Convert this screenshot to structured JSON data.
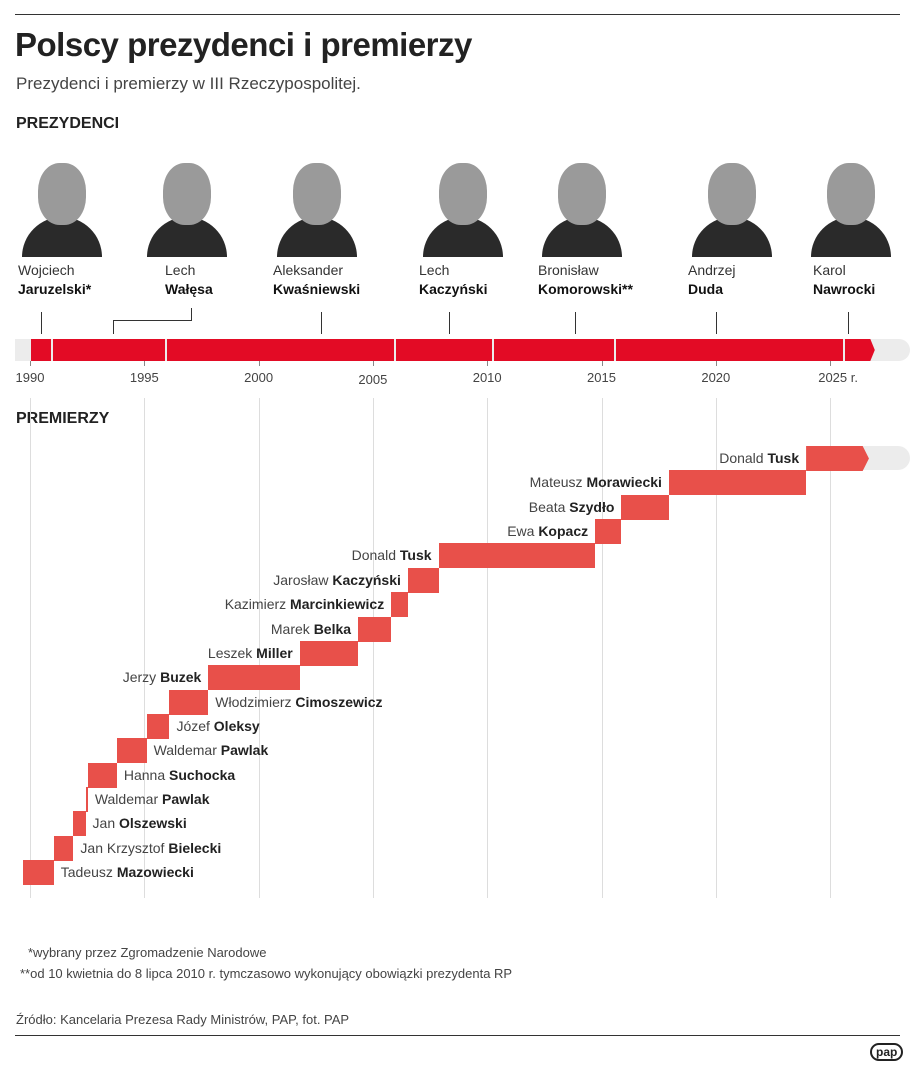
{
  "title": "Polscy prezydenci i premierzy",
  "subtitle": "Prezydenci i premierzy w III Rzeczypospolitej.",
  "sections": {
    "presidents": "PREZYDENCI",
    "pms": "PREMIERZY"
  },
  "chart_data": {
    "type": "timeline",
    "x_ticks": [
      "1990",
      "1995",
      "2000",
      "2005",
      "2010",
      "2015",
      "2020",
      "2025 r."
    ],
    "x_tick_values": [
      1990,
      1995,
      2000,
      2005,
      2010,
      2015,
      2020,
      2025
    ],
    "xlim": [
      1989.5,
      2028.5
    ],
    "bar_color": "#e30b25",
    "pm_bar_color": "#e8504a",
    "future_color": "#ececec",
    "presidents": [
      {
        "first": "Wojciech",
        "last": "Jaruzelski*",
        "start": 1989.55,
        "end": 1990.97
      },
      {
        "first": "Lech",
        "last": "Wałęsa",
        "start": 1990.97,
        "end": 1995.97
      },
      {
        "first": "Aleksander",
        "last": "Kwaśniewski",
        "start": 1995.97,
        "end": 2005.97
      },
      {
        "first": "Lech",
        "last": "Kaczyński",
        "start": 2005.97,
        "end": 2010.27
      },
      {
        "first": "Bronisław",
        "last": "Komorowski**",
        "start": 2010.27,
        "end": 2015.6
      },
      {
        "first": "Andrzej",
        "last": "Duda",
        "start": 2015.6,
        "end": 2025.6
      },
      {
        "first": "Karol",
        "last": "Nawrocki",
        "start": 2025.6,
        "end": 2027.0
      }
    ],
    "pms": [
      {
        "first": "Tadeusz",
        "last": "Mazowiecki",
        "start": 1989.7,
        "end": 1991.04,
        "side": "right"
      },
      {
        "first": "Jan Krzysztof",
        "last": "Bielecki",
        "start": 1991.04,
        "end": 1991.9,
        "side": "right"
      },
      {
        "first": "Jan",
        "last": "Olszewski",
        "start": 1991.9,
        "end": 1992.43,
        "side": "right"
      },
      {
        "first": "Waldemar",
        "last": "Pawlak",
        "start": 1992.43,
        "end": 1992.53,
        "side": "right"
      },
      {
        "first": "Hanna",
        "last": "Suchocka",
        "start": 1992.53,
        "end": 1993.8,
        "side": "right"
      },
      {
        "first": "Waldemar",
        "last": "Pawlak",
        "start": 1993.8,
        "end": 1995.1,
        "side": "right"
      },
      {
        "first": "Józef",
        "last": "Oleksy",
        "start": 1995.1,
        "end": 1996.1,
        "side": "right"
      },
      {
        "first": "Włodzimierz",
        "last": "Cimoszewicz",
        "start": 1996.1,
        "end": 1997.8,
        "side": "right"
      },
      {
        "first": "Jerzy",
        "last": "Buzek",
        "start": 1997.8,
        "end": 2001.8,
        "side": "left"
      },
      {
        "first": "Leszek",
        "last": "Miller",
        "start": 2001.8,
        "end": 2004.35,
        "side": "left"
      },
      {
        "first": "Marek",
        "last": "Belka",
        "start": 2004.35,
        "end": 2005.8,
        "side": "left"
      },
      {
        "first": "Kazimierz",
        "last": "Marcinkiewicz",
        "start": 2005.8,
        "end": 2006.53,
        "side": "left"
      },
      {
        "first": "Jarosław",
        "last": "Kaczyński",
        "start": 2006.53,
        "end": 2007.87,
        "side": "left"
      },
      {
        "first": "Donald",
        "last": "Tusk",
        "start": 2007.87,
        "end": 2014.72,
        "side": "left"
      },
      {
        "first": "Ewa",
        "last": "Kopacz",
        "start": 2014.72,
        "end": 2015.87,
        "side": "left"
      },
      {
        "first": "Beata",
        "last": "Szydło",
        "start": 2015.87,
        "end": 2017.95,
        "side": "left"
      },
      {
        "first": "Mateusz",
        "last": "Morawiecki",
        "start": 2017.95,
        "end": 2023.95,
        "side": "left"
      },
      {
        "first": "Donald",
        "last": "Tusk",
        "start": 2023.95,
        "end": 2026.7,
        "side": "left"
      }
    ]
  },
  "footnotes": [
    "*wybrany przez Zgromadzenie Narodowe",
    "**od 10 kwietnia do 8 lipca 2010 r. tymczasowo wykonujący obowiązki prezydenta RP"
  ],
  "source": "Źródło: Kancelaria Prezesa Rady Ministrów, PAP, fot. PAP",
  "logo": "pap"
}
